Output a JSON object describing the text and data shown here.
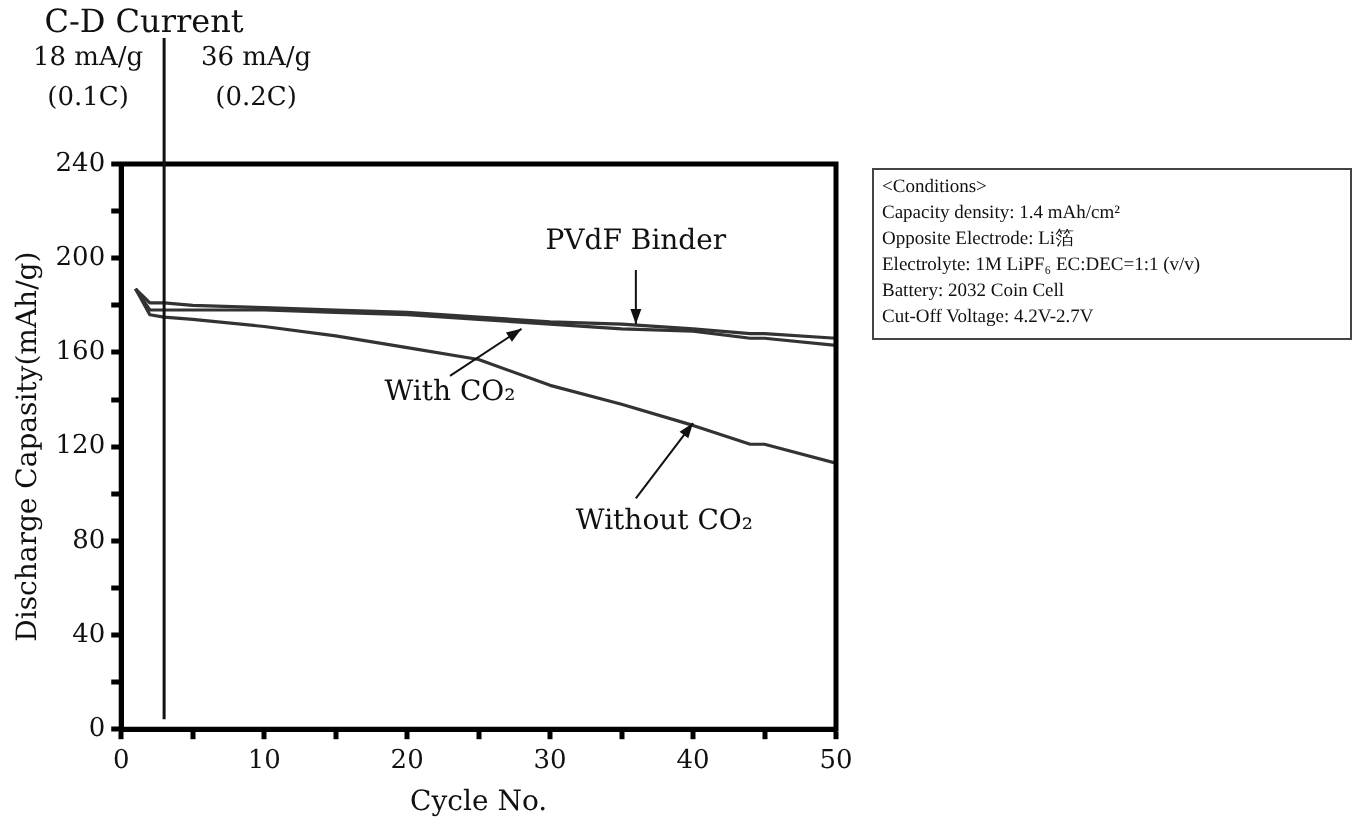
{
  "chart_data": {
    "type": "line",
    "title": "C-D Current",
    "xlabel": "Cycle No.",
    "ylabel": "Discharge Capasity(mAh/g)",
    "x": [
      1,
      2,
      3,
      5,
      10,
      15,
      20,
      25,
      30,
      35,
      40,
      44,
      45,
      50
    ],
    "series": [
      {
        "name": "PVdF Binder",
        "color": "#333333",
        "values": [
          187,
          181,
          181,
          180,
          179,
          178,
          177,
          175,
          173,
          172,
          170,
          168,
          168,
          166
        ]
      },
      {
        "name": "With CO₂",
        "color": "#333333",
        "values": [
          187,
          178,
          178,
          178,
          178,
          177,
          176,
          174,
          172,
          170,
          169,
          166,
          166,
          163
        ]
      },
      {
        "name": "Without CO₂",
        "color": "#333333",
        "values": [
          187,
          176,
          175,
          174,
          171,
          167,
          162,
          157,
          146,
          138,
          129,
          121,
          121,
          113
        ]
      }
    ],
    "xlim": [
      0,
      50
    ],
    "xticks": [
      0,
      {
        "value": 5,
        "label": null
      },
      10,
      {
        "value": 15,
        "label": null
      },
      20,
      {
        "value": 25,
        "label": null
      },
      30,
      {
        "value": 35,
        "label": null
      },
      40,
      {
        "value": 45,
        "label": null
      },
      50
    ],
    "ylim": [
      0,
      240
    ],
    "yticks": [
      0,
      {
        "value": 20,
        "label": null
      },
      40,
      {
        "value": 60,
        "label": null
      },
      80,
      {
        "value": 100,
        "label": null
      },
      120,
      {
        "value": 140,
        "label": null
      },
      160,
      {
        "value": 180,
        "label": null
      },
      200,
      {
        "value": 220,
        "label": null
      },
      240
    ],
    "ref_lines": [
      {
        "axis": "x",
        "value": 3,
        "color": "#111111"
      }
    ],
    "annotations": [
      "18 mA/g\n(0.1C)",
      "36 mA/g\n(0.2C)",
      "<Conditions>\nCapacity density: 1.4 mAh/cm²\nOpposite Electrode: Li箔\nElectrolyte: 1M LiPF₆ EC:DEC=1:1 (v/v)\nBattery: 2032 Coin Cell\nCut-Off Voltage: 4.2V-2.7V"
    ],
    "grid": false,
    "legend": false,
    "marker": "none",
    "line_style": "solid"
  }
}
